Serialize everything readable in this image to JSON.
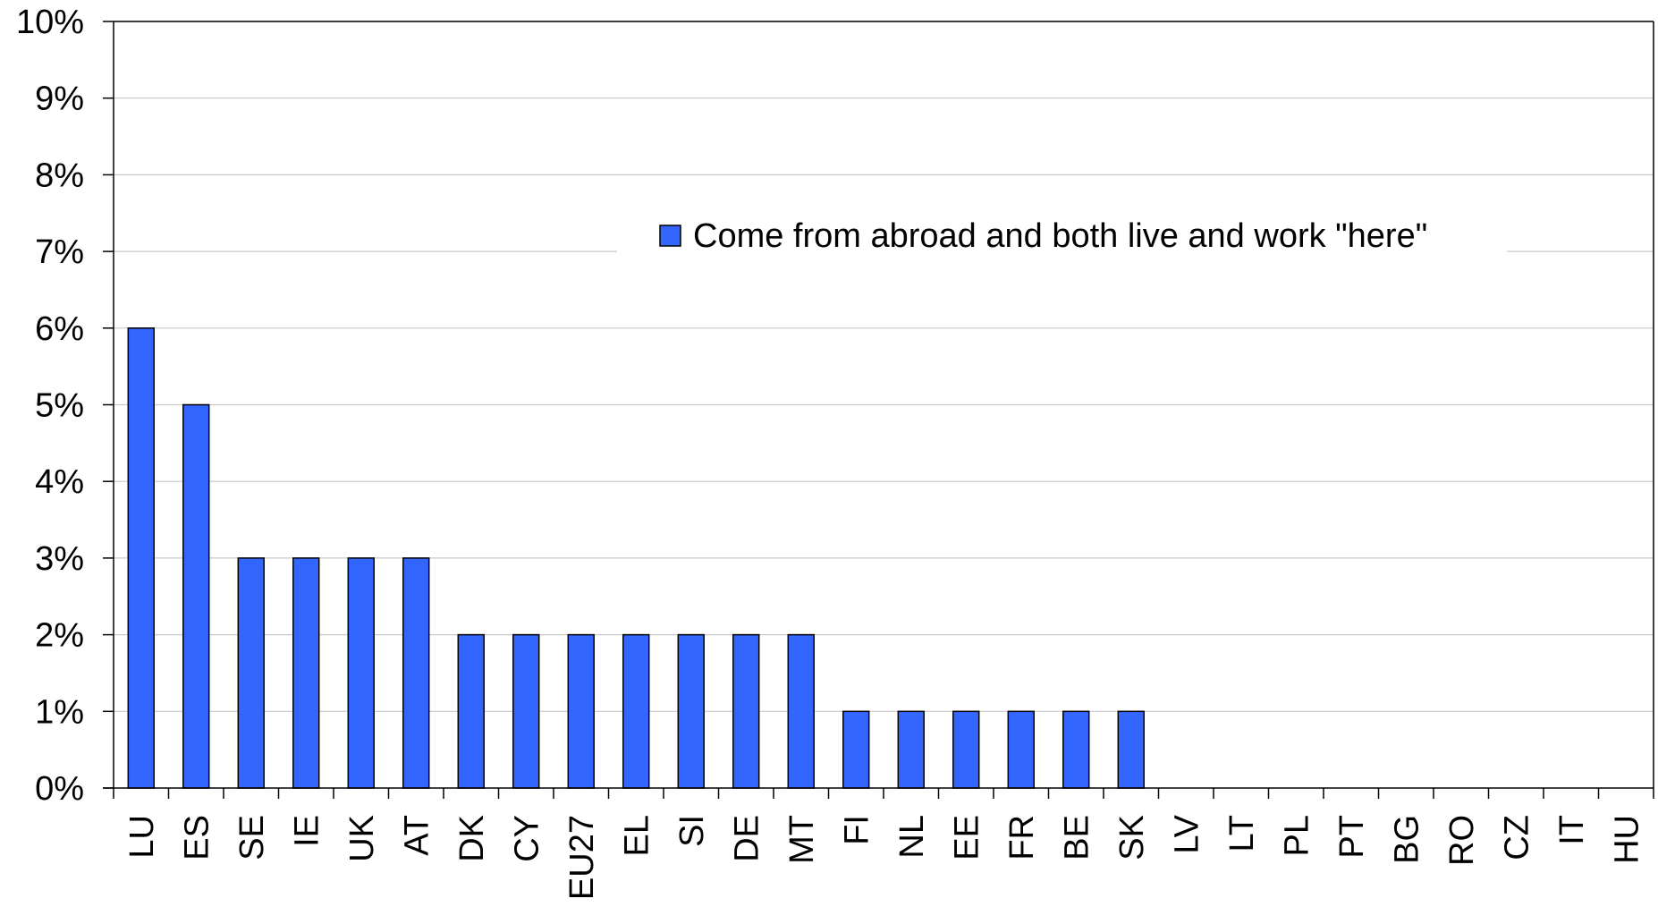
{
  "chart_data": {
    "type": "bar",
    "categories": [
      "LU",
      "ES",
      "SE",
      "IE",
      "UK",
      "AT",
      "DK",
      "CY",
      "EU27",
      "EL",
      "SI",
      "DE",
      "MT",
      "FI",
      "NL",
      "EE",
      "FR",
      "BE",
      "SK",
      "LV",
      "LT",
      "PL",
      "PT",
      "BG",
      "RO",
      "CZ",
      "IT",
      "HU"
    ],
    "series": [
      {
        "name": "Come from abroad and both live and work \"here\"",
        "color": "#3366FF",
        "values": [
          6,
          5,
          3,
          3,
          3,
          3,
          2,
          2,
          2,
          2,
          2,
          2,
          2,
          1,
          1,
          1,
          1,
          1,
          1,
          0,
          0,
          0,
          0,
          0,
          0,
          0,
          0,
          0
        ]
      }
    ],
    "y_ticks": [
      "0%",
      "1%",
      "2%",
      "3%",
      "4%",
      "5%",
      "6%",
      "7%",
      "8%",
      "9%",
      "10%"
    ],
    "ylim": [
      0,
      10
    ],
    "y_unit": "%",
    "grid": true,
    "legend_position": "top-right",
    "title": "",
    "xlabel": "",
    "ylabel": ""
  }
}
